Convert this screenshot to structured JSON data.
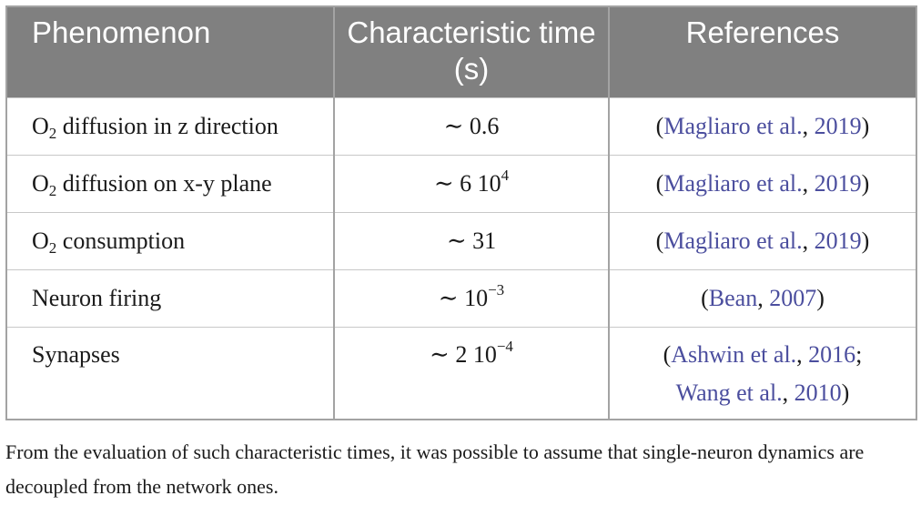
{
  "table": {
    "header": [
      "Phenomenon",
      "Characteristic time (s)",
      "References"
    ],
    "rows": [
      [
        [
          {
            "text": "O"
          },
          {
            "sub": "2"
          },
          {
            "text": " diffusion in z direction"
          }
        ],
        [
          {
            "text": "∼ 0.6"
          }
        ],
        [
          {
            "text": "("
          },
          {
            "link": "Magliaro et al."
          },
          {
            "text": ", "
          },
          {
            "link": "2019"
          },
          {
            "text": ")"
          }
        ]
      ],
      [
        [
          {
            "text": "O"
          },
          {
            "sub": "2"
          },
          {
            "text": " diffusion on x-y plane"
          }
        ],
        [
          {
            "text": "∼ 6 10"
          },
          {
            "sup": "4"
          }
        ],
        [
          {
            "text": "("
          },
          {
            "link": "Magliaro et al."
          },
          {
            "text": ", "
          },
          {
            "link": "2019"
          },
          {
            "text": ")"
          }
        ]
      ],
      [
        [
          {
            "text": "O"
          },
          {
            "sub": "2"
          },
          {
            "text": " consumption"
          }
        ],
        [
          {
            "text": "∼ 31"
          }
        ],
        [
          {
            "text": "("
          },
          {
            "link": "Magliaro et al."
          },
          {
            "text": ", "
          },
          {
            "link": "2019"
          },
          {
            "text": ")"
          }
        ]
      ],
      [
        [
          {
            "text": "Neuron firing"
          }
        ],
        [
          {
            "text": "∼ 10"
          },
          {
            "sup": "−3"
          }
        ],
        [
          {
            "text": "("
          },
          {
            "link": "Bean"
          },
          {
            "text": ", "
          },
          {
            "link": "2007"
          },
          {
            "text": ")"
          }
        ]
      ],
      [
        [
          {
            "text": "Synapses"
          }
        ],
        [
          {
            "text": "∼ 2 10"
          },
          {
            "sup": "−4"
          }
        ],
        [
          {
            "text": "("
          },
          {
            "link": "Ashwin et al."
          },
          {
            "text": ", "
          },
          {
            "link": "2016"
          },
          {
            "text": ";"
          },
          {
            "link": "Wang et al."
          },
          {
            "text": ", "
          },
          {
            "link": "2010"
          },
          {
            "text": ")"
          }
        ]
      ]
    ]
  },
  "footnote": "From the evaluation of such characteristic times, it was possible to assume that single-neuron dynamics are decoupled from the network ones."
}
